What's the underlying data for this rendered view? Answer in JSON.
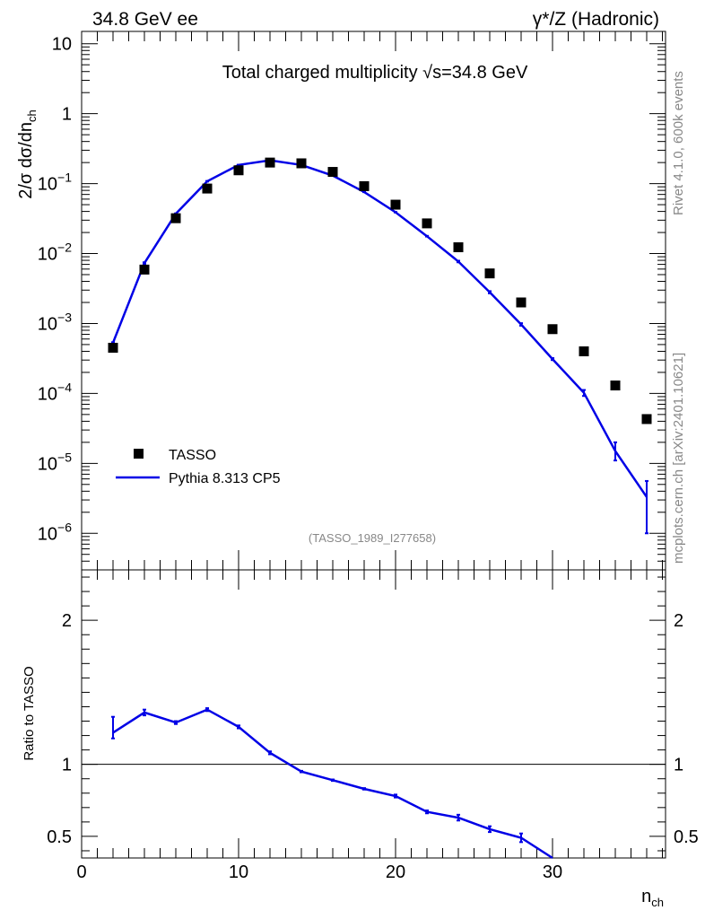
{
  "header": {
    "left": "34.8 GeV ee",
    "right": "γ*/Z (Hadronic)"
  },
  "side_labels": {
    "rivet": "Rivet 4.1.0,  600k events",
    "mcplots": "mcplots.cern.ch [arXiv:2401.10621]"
  },
  "colors": {
    "data": "#000000",
    "mc": "#0000e6"
  },
  "chart_data": [
    {
      "type": "scatter",
      "title": "Total charged multiplicity √s=34.8 GeV",
      "ylabel": "2/σ  dσ/dn_ch",
      "ylabel_main": "2/σ  dσ/dn",
      "ylabel_sub": "ch",
      "watermark": "(TASSO_1989_I277658)",
      "xlim": [
        0,
        37.2
      ],
      "ylim": [
        3e-07,
        15
      ],
      "yscale": "log",
      "yticks": [
        {
          "value": 1e-06,
          "label": "10",
          "exp": "−6"
        },
        {
          "value": 1e-05,
          "label": "10",
          "exp": "−5"
        },
        {
          "value": 0.0001,
          "label": "10",
          "exp": "−4"
        },
        {
          "value": 0.001,
          "label": "10",
          "exp": "−3"
        },
        {
          "value": 0.01,
          "label": "10",
          "exp": "−2"
        },
        {
          "value": 0.1,
          "label": "10",
          "exp": "−1"
        },
        {
          "value": 1,
          "label": "1",
          "exp": ""
        },
        {
          "value": 10,
          "label": "10",
          "exp": ""
        }
      ],
      "legend_position": "bottom-left",
      "legend": [
        {
          "name": "TASSO",
          "kind": "marker"
        },
        {
          "name": "Pythia 8.313 CP5",
          "kind": "line"
        }
      ],
      "series": [
        {
          "name": "TASSO",
          "kind": "points",
          "x": [
            2,
            4,
            6,
            8,
            10,
            12,
            14,
            16,
            18,
            20,
            22,
            24,
            26,
            28,
            30,
            32,
            34,
            36
          ],
          "y": [
            0.00045,
            0.0059,
            0.032,
            0.085,
            0.155,
            0.2,
            0.195,
            0.147,
            0.092,
            0.05,
            0.027,
            0.0123,
            0.0052,
            0.002,
            0.00083,
            0.0004,
            0.00013,
            4.3e-05
          ]
        },
        {
          "name": "Pythia 8.313 CP5",
          "kind": "line",
          "x": [
            2,
            4,
            6,
            8,
            10,
            12,
            14,
            16,
            18,
            20,
            22,
            24,
            26,
            28,
            30,
            32,
            34,
            36
          ],
          "y": [
            0.00053,
            0.0073,
            0.037,
            0.108,
            0.185,
            0.215,
            0.185,
            0.13,
            0.076,
            0.039,
            0.0177,
            0.0077,
            0.0028,
            0.00097,
            0.00031,
            0.000102,
            1.5e-05,
            3.3e-06
          ],
          "ylow": [
            0.00052,
            0.0071,
            0.0365,
            0.107,
            0.184,
            0.214,
            0.184,
            0.129,
            0.0755,
            0.0387,
            0.0175,
            0.0075,
            0.0027,
            0.00093,
            0.0003,
            9.2e-05,
            1.1e-05,
            1e-06
          ],
          "yhigh": [
            0.00054,
            0.0075,
            0.0375,
            0.109,
            0.186,
            0.216,
            0.186,
            0.131,
            0.0765,
            0.0393,
            0.0179,
            0.0079,
            0.0029,
            0.00101,
            0.00032,
            0.000112,
            2e-05,
            5.6e-06
          ]
        }
      ]
    },
    {
      "type": "line",
      "ylabel": "Ratio to TASSO",
      "xlabel": "n_ch",
      "xlabel_main": "n",
      "xlabel_sub": "ch",
      "xlim": [
        0,
        37.2
      ],
      "ylim": [
        0.35,
        2.35
      ],
      "xticks": [
        0,
        10,
        20,
        30
      ],
      "yticks": [
        0.5,
        1,
        2
      ],
      "reference_line": 1,
      "series": [
        {
          "name": "Pythia 8.313 CP5",
          "x": [
            2,
            4,
            6,
            8,
            10,
            12,
            14,
            16,
            18,
            20,
            22,
            24,
            26,
            28,
            30
          ],
          "y": [
            1.22,
            1.36,
            1.29,
            1.38,
            1.26,
            1.08,
            0.95,
            0.89,
            0.83,
            0.78,
            0.67,
            0.63,
            0.55,
            0.49,
            0.35
          ],
          "ylow": [
            1.18,
            1.34,
            1.28,
            1.37,
            1.25,
            1.07,
            0.945,
            0.885,
            0.825,
            0.77,
            0.66,
            0.61,
            0.53,
            0.46,
            0.35
          ],
          "yhigh": [
            1.33,
            1.38,
            1.3,
            1.39,
            1.27,
            1.09,
            0.955,
            0.895,
            0.835,
            0.79,
            0.68,
            0.65,
            0.57,
            0.52,
            0.35
          ]
        }
      ]
    }
  ]
}
